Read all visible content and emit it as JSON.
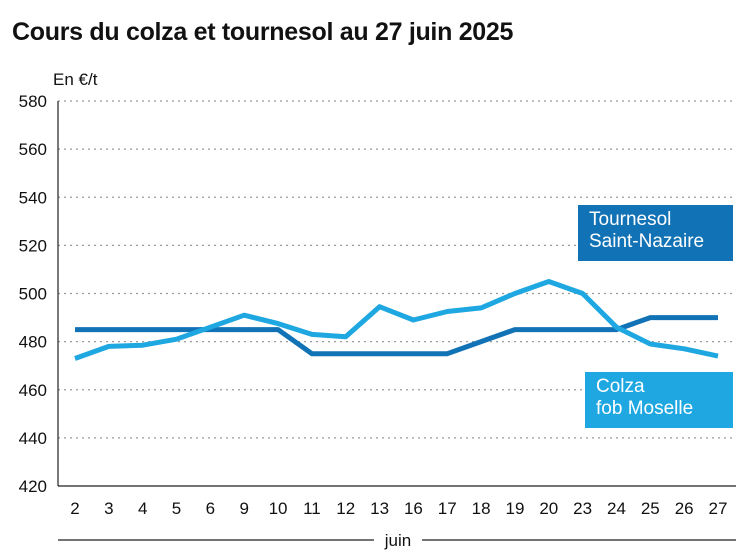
{
  "title": "Cours du colza et tournesol au 27 juin 2025",
  "chart_data": {
    "type": "line",
    "title": "Cours du colza et tournesol au 27 juin 2025",
    "ylabel": "En €/t",
    "xlabel": "juin",
    "ylim": [
      420,
      580
    ],
    "yticks": [
      420,
      440,
      460,
      480,
      500,
      520,
      540,
      560,
      580
    ],
    "grid": "horizontal dotted",
    "categories": [
      "2",
      "3",
      "4",
      "5",
      "6",
      "9",
      "10",
      "11",
      "12",
      "13",
      "16",
      "17",
      "18",
      "19",
      "20",
      "23",
      "24",
      "25",
      "26",
      "27"
    ],
    "series": [
      {
        "name_lines": [
          "Tournesol",
          "Saint-Nazaire"
        ],
        "color": "#1272b6",
        "values": [
          485,
          485,
          485,
          485,
          485,
          485,
          485,
          475,
          475,
          475,
          475,
          475,
          480,
          485,
          485,
          485,
          485,
          490,
          490,
          490
        ]
      },
      {
        "name_lines": [
          "Colza",
          "fob Moselle"
        ],
        "color": "#1ea7e1",
        "values": [
          473,
          478,
          478.5,
          481,
          486,
          491,
          487.5,
          483,
          482,
          494.5,
          489,
          492.5,
          494,
          500,
          505,
          500,
          486,
          479,
          477,
          474
        ]
      }
    ]
  }
}
